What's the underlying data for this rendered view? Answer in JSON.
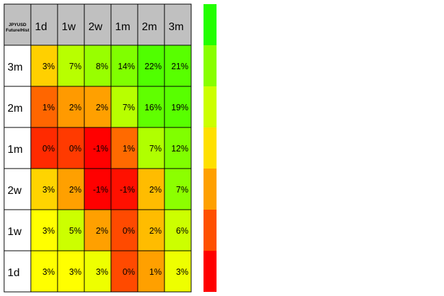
{
  "chart_data": {
    "type": "heatmap",
    "corner_label": [
      "JPYUSD",
      "Future/Hist"
    ],
    "col_labels": [
      "1d",
      "1w",
      "2w",
      "1m",
      "2m",
      "3m"
    ],
    "row_labels": [
      "3m",
      "2m",
      "1m",
      "2w",
      "1w",
      "1d"
    ],
    "cell_labels": [
      [
        "3%",
        "7%",
        "8%",
        "14%",
        "22%",
        "21%"
      ],
      [
        "1%",
        "2%",
        "2%",
        "7%",
        "16%",
        "19%"
      ],
      [
        "0%",
        "0%",
        "-1%",
        "1%",
        "7%",
        "12%"
      ],
      [
        "3%",
        "2%",
        "-1%",
        "-1%",
        "2%",
        "7%"
      ],
      [
        "3%",
        "5%",
        "2%",
        "0%",
        "2%",
        "6%"
      ],
      [
        "3%",
        "3%",
        "3%",
        "0%",
        "1%",
        "3%"
      ]
    ],
    "cell_colors": [
      [
        "#ffd000",
        "#b8ff00",
        "#98ff00",
        "#80ff00",
        "#50ff00",
        "#58ff00"
      ],
      [
        "#ff6600",
        "#ff9a00",
        "#ffa000",
        "#b8ff00",
        "#60ff00",
        "#58ff00"
      ],
      [
        "#ff2a00",
        "#ff3a00",
        "#ff0000",
        "#ff6a00",
        "#b0ff00",
        "#80ff00"
      ],
      [
        "#ffd400",
        "#ffa000",
        "#ff0000",
        "#ff1000",
        "#ffbc00",
        "#8cff00"
      ],
      [
        "#ffff00",
        "#ccff00",
        "#ffa000",
        "#ff4a00",
        "#ffbc00",
        "#ccff00"
      ],
      [
        "#ffff00",
        "#ffff00",
        "#eeff00",
        "#ff4a00",
        "#ffa000",
        "#eeff00"
      ]
    ],
    "legend_colors": [
      "#22ff00",
      "#88ff00",
      "#ccff00",
      "#ffe000",
      "#ffa000",
      "#ff5000",
      "#ff0000"
    ],
    "header_color": "#c0c0c0",
    "grid": true
  }
}
